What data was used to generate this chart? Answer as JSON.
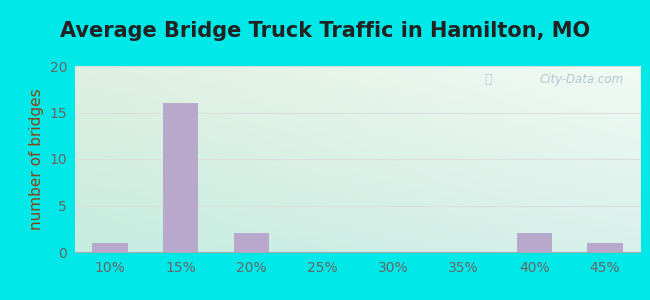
{
  "title": "Average Bridge Truck Traffic in Hamilton, MO",
  "ylabel": "number of bridges",
  "categories": [
    "10%",
    "15%",
    "20%",
    "25%",
    "30%",
    "35%",
    "40%",
    "45%"
  ],
  "values": [
    1,
    16,
    2,
    0,
    0,
    0,
    2,
    1
  ],
  "bar_color": "#b8a8cc",
  "ylim": [
    0,
    20
  ],
  "yticks": [
    0,
    5,
    10,
    15,
    20
  ],
  "title_fontsize": 15,
  "axis_label_fontsize": 11,
  "tick_fontsize": 10,
  "title_color": "#222222",
  "axis_label_color": "#8B4513",
  "tick_color": "#666666",
  "background_outer": "#00e8e8",
  "bg_top_left": "#dff0e0",
  "bg_top_right": "#f0f8f0",
  "bg_bottom_left": "#c5ece0",
  "bg_bottom_right": "#daf0ea",
  "grid_color": "#dddddd",
  "watermark_text": "City-Data.com",
  "watermark_color": "#aabbcc",
  "bar_width": 0.5
}
